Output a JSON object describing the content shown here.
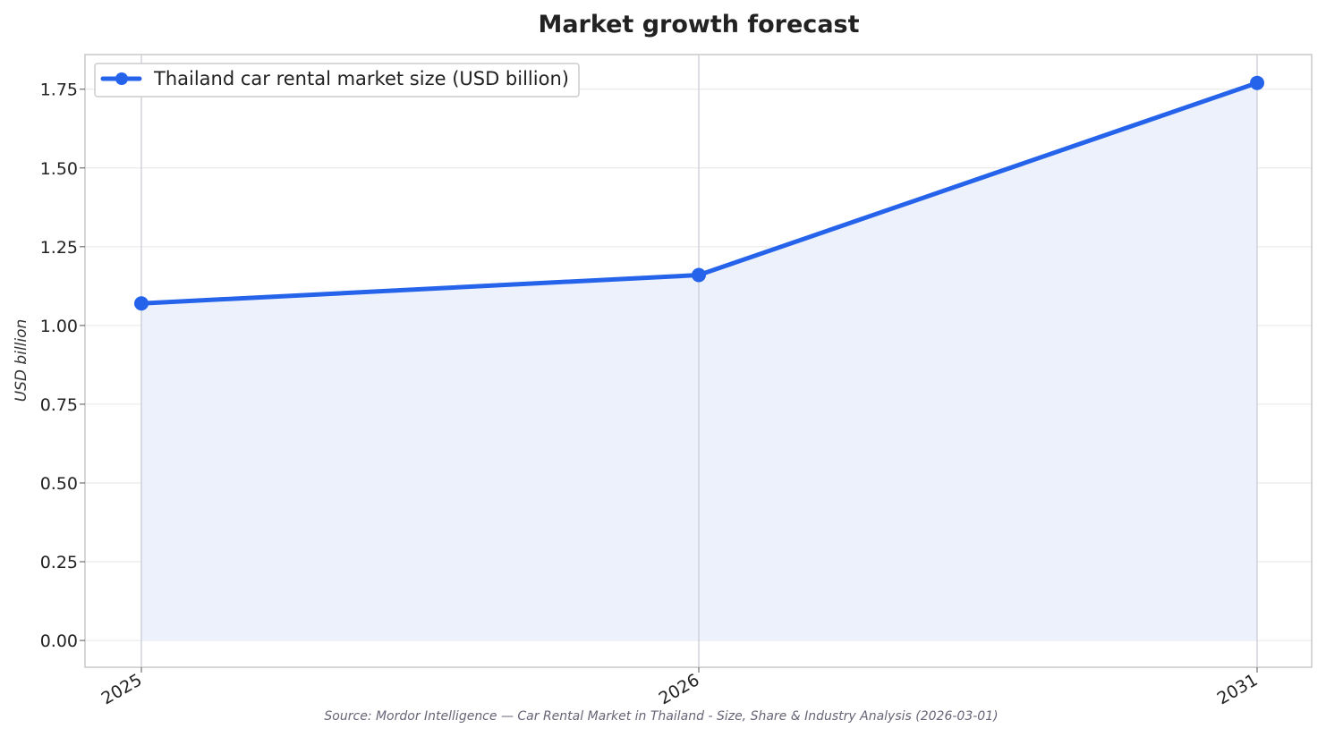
{
  "chart_data": {
    "type": "line",
    "title": "Market growth forecast",
    "xlabel": "",
    "ylabel": "USD billion",
    "categories": [
      "2025",
      "2026",
      "2031"
    ],
    "series": [
      {
        "name": "Thailand car rental market size (USD billion)",
        "values": [
          1.07,
          1.16,
          1.77
        ]
      }
    ],
    "ylim": [
      -0.085,
      1.86
    ],
    "yticks": [
      "0.00",
      "0.25",
      "0.50",
      "0.75",
      "1.00",
      "1.25",
      "1.50",
      "1.75"
    ],
    "area_fill": true,
    "grid": true,
    "legend_position": "top-left",
    "colors": {
      "line": "#2563eb",
      "fill": "#ecf1fc",
      "grid": "#e6e6e6",
      "vgrid": "#c8ccd6",
      "frame": "#c8c8c8"
    }
  },
  "source": "Source: Mordor Intelligence — Car Rental Market in Thailand - Size, Share & Industry Analysis (2026-03-01)"
}
